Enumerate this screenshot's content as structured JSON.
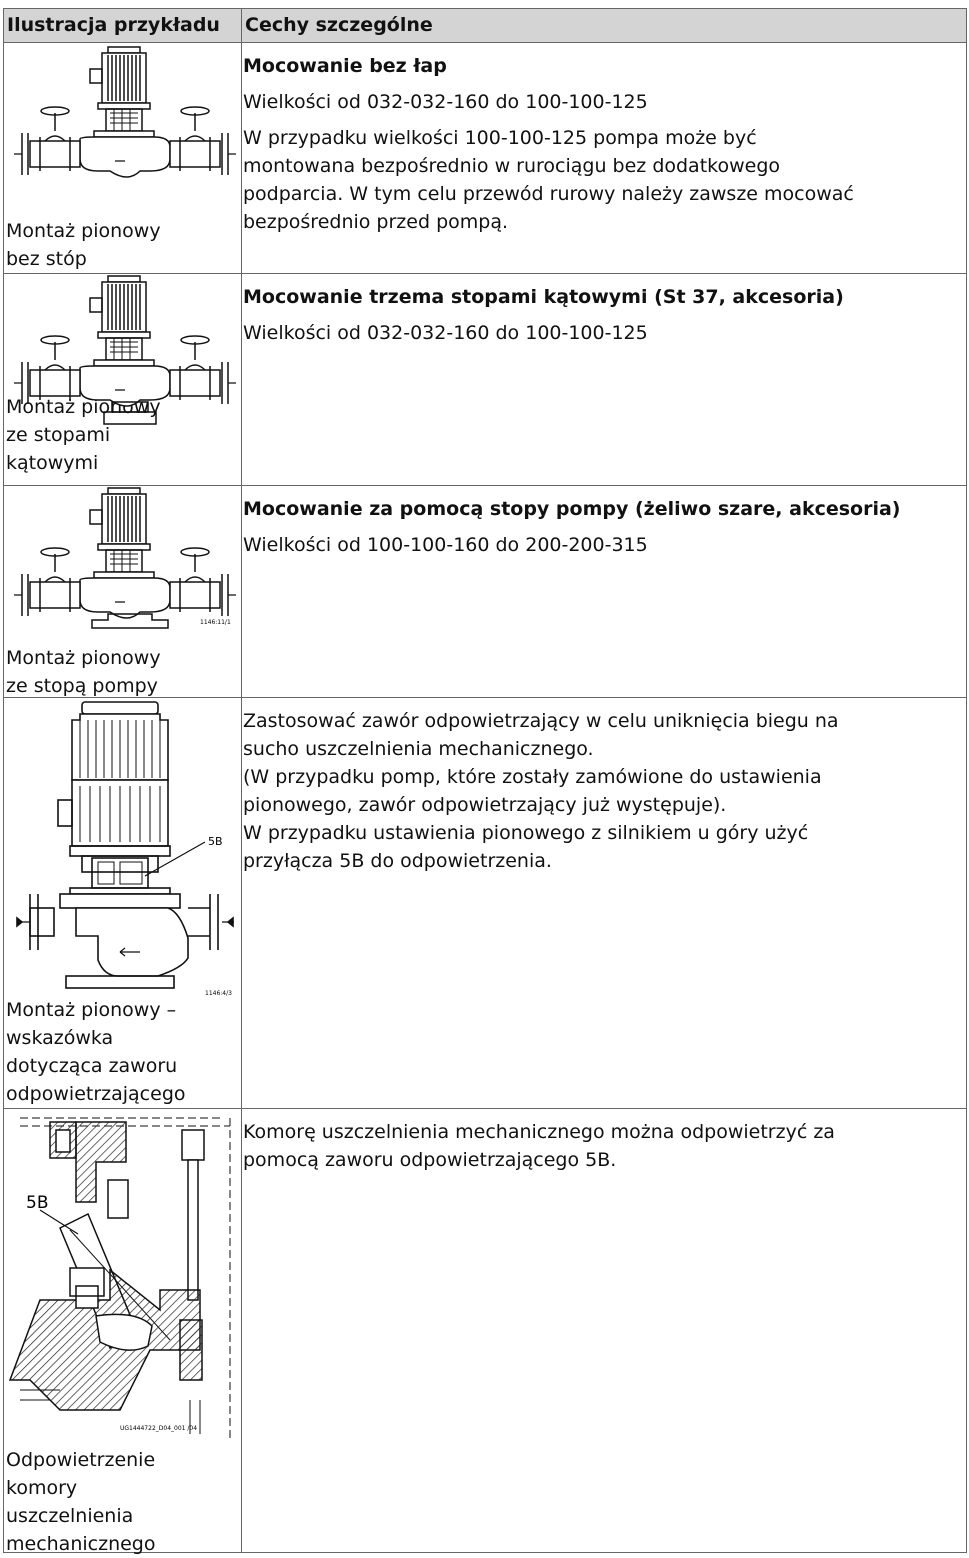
{
  "header": {
    "col1": "Ilustracja przykładu",
    "col2": "Cechy szczególne"
  },
  "rows": [
    {
      "heading": "Mocowanie bez łap",
      "paragraphs": [
        [
          "Wielkości od 032-032-160 do 100-100-125"
        ],
        [
          "W przypadku wielkości 100-100-125 pompa może być",
          "montowana bezpośrednio w rurociągu bez dodatkowego",
          "podparcia. W tym celu przewód rurowy należy zawsze mocować",
          "bezpośrednio przed pompą."
        ]
      ],
      "caption": [
        "Montaż pionowy",
        "bez stóp"
      ]
    },
    {
      "heading": "Mocowanie trzema stopami kątowymi (St 37, akcesoria)",
      "paragraphs": [
        [
          "Wielkości od 032-032-160 do 100-100-125"
        ]
      ],
      "caption": [
        "Montaż pionowy",
        "ze stopami",
        "kątowymi"
      ]
    },
    {
      "heading": "Mocowanie za pomocą stopy pompy (żeliwo szare, akcesoria)",
      "paragraphs": [
        [
          "Wielkości od 100-100-160 do 200-200-315"
        ]
      ],
      "caption": [
        "Montaż pionowy",
        "ze stopą pompy"
      ],
      "figure_labels": [
        "1146:11/1"
      ]
    },
    {
      "paragraphs": [
        [
          "Zastosować zawór odpowietrzający w celu uniknięcia biegu na",
          "sucho uszczelnienia mechanicznego.",
          "(W przypadku pomp, które zostały zamówione do ustawienia",
          "pionowego, zawór odpowietrzający już występuje).",
          "W przypadku ustawienia pionowego z silnikiem u góry użyć",
          "przyłącza 5B do odpowietrzenia."
        ]
      ],
      "caption": [
        "Montaż pionowy –",
        "wskazówka",
        "dotycząca zaworu",
        "odpowietrzającego"
      ],
      "figure_labels": [
        "5B",
        "1146:4/3"
      ]
    },
    {
      "paragraphs": [
        [
          "Komorę uszczelnienia mechanicznego można odpowietrzyć za",
          "pomocą zaworu odpowietrzającego 5B."
        ]
      ],
      "caption": [
        "Odpowietrzenie",
        "komory",
        "uszczelnienia",
        "mechanicznego"
      ],
      "figure_labels": [
        "5B",
        "UG1444722_D04_001 /04"
      ]
    }
  ]
}
